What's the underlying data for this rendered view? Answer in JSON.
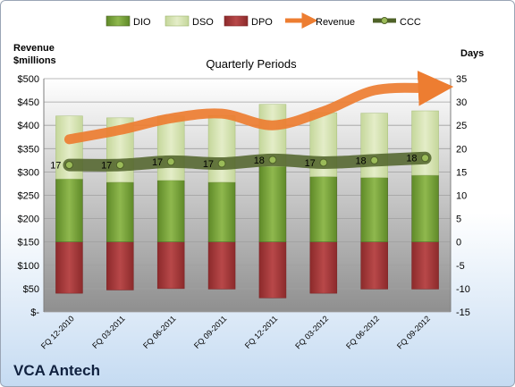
{
  "company": "VCA Antech",
  "chart_data": {
    "type": "bar",
    "title": "Quarterly Periods",
    "y_left_label_lines": [
      "Revenue",
      "$millions"
    ],
    "y_right_label": "Days",
    "categories": [
      "FQ 12-2010",
      "FQ 03-2011",
      "FQ 06-2011",
      "FQ 09-2011",
      "FQ 12-2011",
      "FQ 03-2012",
      "FQ 06-2012",
      "FQ 09-2012"
    ],
    "y_left_ticks": [
      "$-",
      "$50",
      "$100",
      "$150",
      "$200",
      "$250",
      "$300",
      "$350",
      "$400",
      "$450",
      "$500"
    ],
    "y_left_range": [
      0,
      500
    ],
    "y_right_range": [
      -15,
      35
    ],
    "y_right_ticks": [
      -15,
      -10,
      -5,
      0,
      5,
      10,
      15,
      20,
      25,
      30,
      35
    ],
    "legend": {
      "position": "top",
      "entries": [
        "DIO",
        "DSO",
        "DPO",
        "Revenue",
        "CCC"
      ]
    },
    "series": [
      {
        "name": "DIO",
        "axis": "right",
        "kind": "stacked-bar",
        "color": "#77a13a",
        "values": [
          13.5,
          12.8,
          13.2,
          12.8,
          16.2,
          14.0,
          13.8,
          14.3
        ]
      },
      {
        "name": "DSO",
        "axis": "right",
        "kind": "stacked-bar",
        "color": "#d7e4b4",
        "values": [
          13.5,
          13.8,
          13.8,
          14.3,
          13.3,
          13.7,
          13.8,
          13.8
        ]
      },
      {
        "name": "DPO",
        "axis": "right",
        "kind": "bar-negative",
        "color": "#a5393a",
        "values": [
          -11.0,
          -10.3,
          -10.0,
          -10.1,
          -12.0,
          -11.0,
          -10.1,
          -10.1
        ]
      },
      {
        "name": "Revenue",
        "axis": "left",
        "kind": "line",
        "color": "#ed7d31",
        "values": [
          370,
          390,
          415,
          425,
          400,
          430,
          475,
          480
        ]
      },
      {
        "name": "CCC",
        "axis": "right",
        "kind": "line",
        "color": "#4f6228",
        "values": [
          16.5,
          16.5,
          17.2,
          16.8,
          17.6,
          17.0,
          17.5,
          18.0
        ]
      }
    ],
    "data_labels": [
      "17",
      "17",
      "17",
      "17",
      "18",
      "17",
      "18",
      "18"
    ],
    "colors": {
      "plot_bg_top": "#ffffff",
      "plot_bg_bottom": "#8f8f8f",
      "grid": "#a0a0a0"
    }
  }
}
